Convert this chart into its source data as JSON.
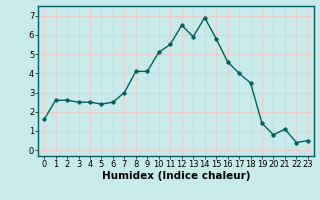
{
  "x": [
    0,
    1,
    2,
    3,
    4,
    5,
    6,
    7,
    8,
    9,
    10,
    11,
    12,
    13,
    14,
    15,
    16,
    17,
    18,
    19,
    20,
    21,
    22,
    23
  ],
  "y": [
    1.6,
    2.6,
    2.6,
    2.5,
    2.5,
    2.4,
    2.5,
    3.0,
    4.1,
    4.1,
    5.1,
    5.5,
    6.5,
    5.9,
    6.9,
    5.8,
    4.6,
    4.0,
    3.5,
    1.4,
    0.8,
    1.1,
    0.4,
    0.5
  ],
  "line_color": "#006060",
  "marker": "o",
  "marker_size": 2.5,
  "bg_color": "#c8eaea",
  "grid_color": "#f0c8c8",
  "xlabel": "Humidex (Indice chaleur)",
  "xlabel_fontsize": 7.5,
  "xlim": [
    -0.5,
    23.5
  ],
  "ylim": [
    -0.3,
    7.5
  ],
  "yticks": [
    0,
    1,
    2,
    3,
    4,
    5,
    6,
    7
  ],
  "xticks": [
    0,
    1,
    2,
    3,
    4,
    5,
    6,
    7,
    8,
    9,
    10,
    11,
    12,
    13,
    14,
    15,
    16,
    17,
    18,
    19,
    20,
    21,
    22,
    23
  ],
  "tick_fontsize": 6,
  "line_width": 1.0
}
